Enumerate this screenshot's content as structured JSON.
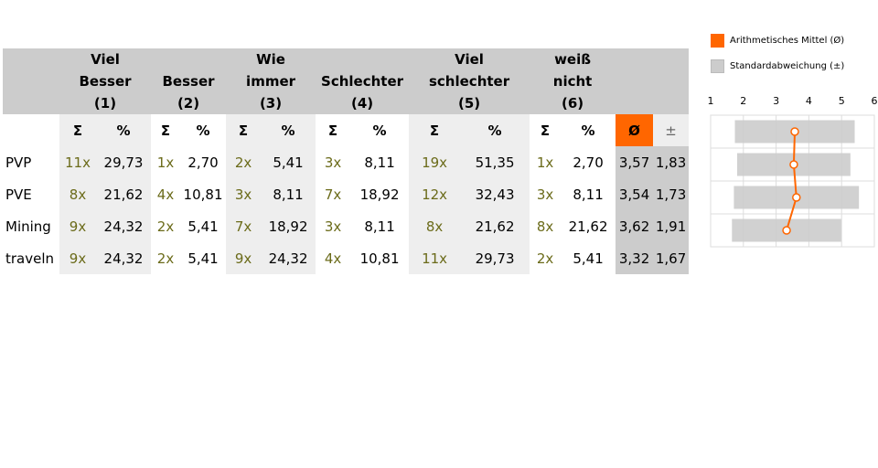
{
  "legend": {
    "mean_label": "Arithmetisches Mittel (Ø)",
    "sd_label": "Standardabweichung (±)",
    "mean_color": "#ff6600",
    "sd_color": "#cccccc"
  },
  "columns": [
    {
      "l1": "Viel",
      "l2": "Besser",
      "l3": "(1)"
    },
    {
      "l1": "",
      "l2": "Besser",
      "l3": "(2)"
    },
    {
      "l1": "Wie",
      "l2": "immer",
      "l3": "(3)"
    },
    {
      "l1": "",
      "l2": "Schlechter",
      "l3": "(4)"
    },
    {
      "l1": "Viel",
      "l2": "schlechter",
      "l3": "(5)"
    },
    {
      "l1": "weiß",
      "l2": "nicht",
      "l3": "(6)"
    }
  ],
  "subheader": {
    "sum": "Σ",
    "pct": "%",
    "mean": "Ø",
    "sd": "±"
  },
  "rows": [
    {
      "label": "PVP",
      "cells": [
        [
          "11x",
          "29,73"
        ],
        [
          "1x",
          "2,70"
        ],
        [
          "2x",
          "5,41"
        ],
        [
          "3x",
          "8,11"
        ],
        [
          "19x",
          "51,35"
        ],
        [
          "1x",
          "2,70"
        ]
      ],
      "mean": "3,57",
      "sd": "1,83"
    },
    {
      "label": "PVE",
      "cells": [
        [
          "8x",
          "21,62"
        ],
        [
          "4x",
          "10,81"
        ],
        [
          "3x",
          "8,11"
        ],
        [
          "7x",
          "18,92"
        ],
        [
          "12x",
          "32,43"
        ],
        [
          "3x",
          "8,11"
        ]
      ],
      "mean": "3,54",
      "sd": "1,73"
    },
    {
      "label": "Mining",
      "cells": [
        [
          "9x",
          "24,32"
        ],
        [
          "2x",
          "5,41"
        ],
        [
          "7x",
          "18,92"
        ],
        [
          "3x",
          "8,11"
        ],
        [
          "8x",
          "21,62"
        ],
        [
          "8x",
          "21,62"
        ]
      ],
      "mean": "3,62",
      "sd": "1,91"
    },
    {
      "label": "traveln",
      "cells": [
        [
          "9x",
          "24,32"
        ],
        [
          "2x",
          "5,41"
        ],
        [
          "9x",
          "24,32"
        ],
        [
          "4x",
          "10,81"
        ],
        [
          "11x",
          "29,73"
        ],
        [
          "2x",
          "5,41"
        ]
      ],
      "mean": "3,32",
      "sd": "1,67"
    }
  ],
  "chart_data": {
    "type": "line",
    "x_ticks": [
      "1",
      "2",
      "3",
      "4",
      "5",
      "6"
    ],
    "xlim": [
      1,
      6
    ],
    "categories": [
      "PVP",
      "PVE",
      "Mining",
      "traveln"
    ],
    "series": [
      {
        "name": "Arithmetisches Mittel (Ø)",
        "values": [
          3.57,
          3.54,
          3.62,
          3.32
        ]
      },
      {
        "name": "Standardabweichung (±)",
        "values": [
          1.83,
          1.73,
          1.91,
          1.67
        ]
      }
    ],
    "grid": true,
    "legend_position": "top-right"
  }
}
